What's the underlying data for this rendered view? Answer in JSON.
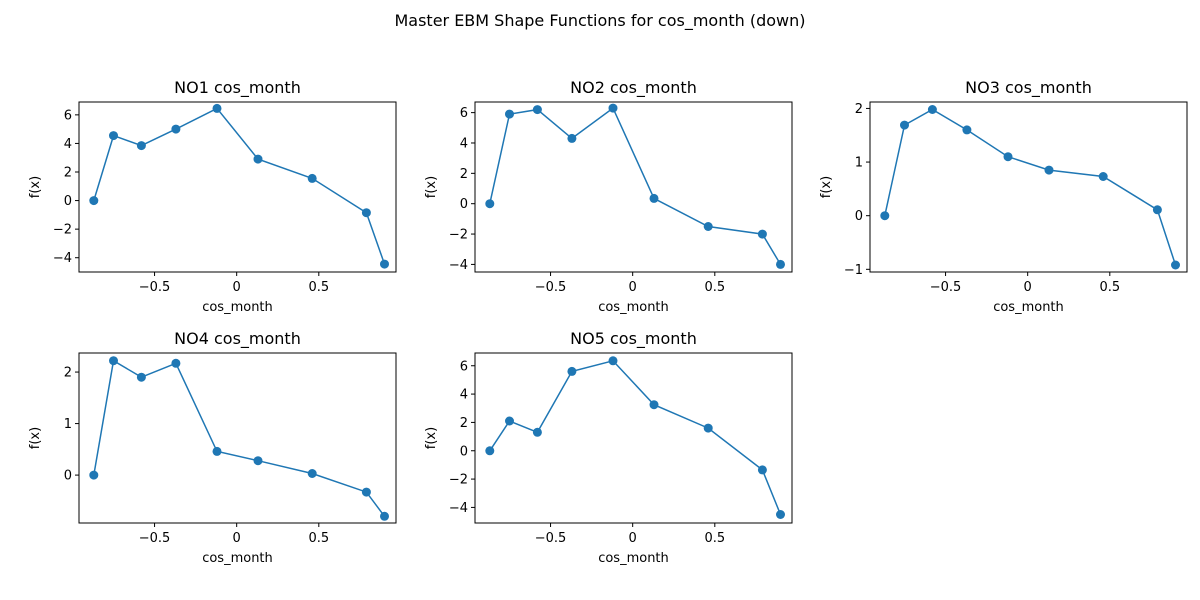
{
  "figure": {
    "title": "Master EBM Shape Functions for cos_month (down)"
  },
  "chart_data": [
    {
      "type": "line",
      "title": "NO1 cos_month",
      "xlabel": "cos_month",
      "ylabel": "f(x)",
      "xlim": [
        -0.96,
        0.97
      ],
      "ylim": [
        -5.0,
        6.9
      ],
      "xticks": [
        -0.5,
        0.0,
        0.5
      ],
      "yticks": [
        -4,
        -2,
        0,
        2,
        4,
        6
      ],
      "grid": false,
      "color": "#1f77b4",
      "marker": "circle",
      "series": [
        {
          "x": [
            -0.87,
            -0.75,
            -0.58,
            -0.37,
            -0.12,
            0.13,
            0.46,
            0.79,
            0.9
          ],
          "y": [
            0.0,
            4.55,
            3.85,
            5.0,
            6.45,
            2.9,
            1.55,
            -0.85,
            -4.45
          ]
        }
      ]
    },
    {
      "type": "line",
      "title": "NO2 cos_month",
      "xlabel": "cos_month",
      "ylabel": "f(x)",
      "xlim": [
        -0.96,
        0.97
      ],
      "ylim": [
        -4.5,
        6.7
      ],
      "xticks": [
        -0.5,
        0.0,
        0.5
      ],
      "yticks": [
        -4,
        -2,
        0,
        2,
        4,
        6
      ],
      "grid": false,
      "color": "#1f77b4",
      "marker": "circle",
      "series": [
        {
          "x": [
            -0.87,
            -0.75,
            -0.58,
            -0.37,
            -0.12,
            0.13,
            0.46,
            0.79,
            0.9
          ],
          "y": [
            0.0,
            5.9,
            6.2,
            4.3,
            6.3,
            0.35,
            -1.5,
            -2.0,
            -4.0
          ]
        }
      ]
    },
    {
      "type": "line",
      "title": "NO3 cos_month",
      "xlabel": "cos_month",
      "ylabel": "f(x)",
      "xlim": [
        -0.96,
        0.97
      ],
      "ylim": [
        -1.05,
        2.12
      ],
      "xticks": [
        -0.5,
        0.0,
        0.5
      ],
      "yticks": [
        -1,
        0,
        1,
        2
      ],
      "grid": false,
      "color": "#1f77b4",
      "marker": "circle",
      "series": [
        {
          "x": [
            -0.87,
            -0.75,
            -0.58,
            -0.37,
            -0.12,
            0.13,
            0.46,
            0.79,
            0.9
          ],
          "y": [
            0.0,
            1.69,
            1.98,
            1.6,
            1.1,
            0.85,
            0.73,
            0.11,
            -0.92
          ]
        }
      ]
    },
    {
      "type": "line",
      "title": "NO4 cos_month",
      "xlabel": "cos_month",
      "ylabel": "f(x)",
      "xlim": [
        -0.96,
        0.97
      ],
      "ylim": [
        -0.93,
        2.37
      ],
      "xticks": [
        -0.5,
        0.0,
        0.5
      ],
      "yticks": [
        0,
        1,
        2
      ],
      "grid": false,
      "color": "#1f77b4",
      "marker": "circle",
      "series": [
        {
          "x": [
            -0.87,
            -0.75,
            -0.58,
            -0.37,
            -0.12,
            0.13,
            0.46,
            0.79,
            0.9
          ],
          "y": [
            0.0,
            2.22,
            1.9,
            2.17,
            0.46,
            0.28,
            0.03,
            -0.33,
            -0.8
          ]
        }
      ]
    },
    {
      "type": "line",
      "title": "NO5 cos_month",
      "xlabel": "cos_month",
      "ylabel": "f(x)",
      "xlim": [
        -0.96,
        0.97
      ],
      "ylim": [
        -5.1,
        6.9
      ],
      "xticks": [
        -0.5,
        0.0,
        0.5
      ],
      "yticks": [
        -4,
        -2,
        0,
        2,
        4,
        6
      ],
      "grid": false,
      "color": "#1f77b4",
      "marker": "circle",
      "series": [
        {
          "x": [
            -0.87,
            -0.75,
            -0.58,
            -0.37,
            -0.12,
            0.13,
            0.46,
            0.79,
            0.9
          ],
          "y": [
            0.0,
            2.1,
            1.3,
            5.6,
            6.35,
            3.25,
            1.6,
            -1.35,
            -4.5
          ]
        }
      ]
    }
  ]
}
